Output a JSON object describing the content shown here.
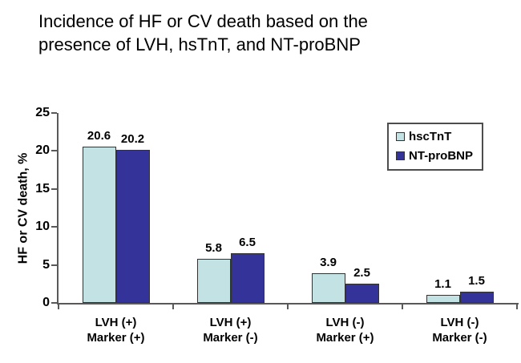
{
  "title": {
    "line1": "Incidence of HF or CV death based on the",
    "line2": "presence of LVH, hsTnT, and NT-proBNP"
  },
  "chart_data": {
    "type": "bar",
    "title": "Incidence of HF or CV death based on the presence of LVH, hsTnT, and NT-proBNP",
    "categories": [
      {
        "line1": "LVH (+)",
        "line2": "Marker (+)"
      },
      {
        "line1": "LVH (+)",
        "line2": "Marker (-)"
      },
      {
        "line1": "LVH (-)",
        "line2": "Marker (+)"
      },
      {
        "line1": "LVH (-)",
        "line2": "Marker (-)"
      }
    ],
    "series": [
      {
        "name": "hscTnT",
        "color": "#c2e2e4",
        "values": [
          20.6,
          5.8,
          3.9,
          1.1
        ]
      },
      {
        "name": "NT-proBNP",
        "color": "#333399",
        "values": [
          20.2,
          6.5,
          2.5,
          1.5
        ]
      }
    ],
    "xlabel": "",
    "ylabel": "HF or CV death, %",
    "ylim": [
      0,
      25
    ],
    "yticks": [
      0,
      5,
      10,
      15,
      20,
      25
    ],
    "legend_position": "top-right",
    "grid": false
  },
  "colors": {
    "axis": "#595959",
    "bar_border": "#333333",
    "text": "#000000",
    "background": "#ffffff"
  }
}
